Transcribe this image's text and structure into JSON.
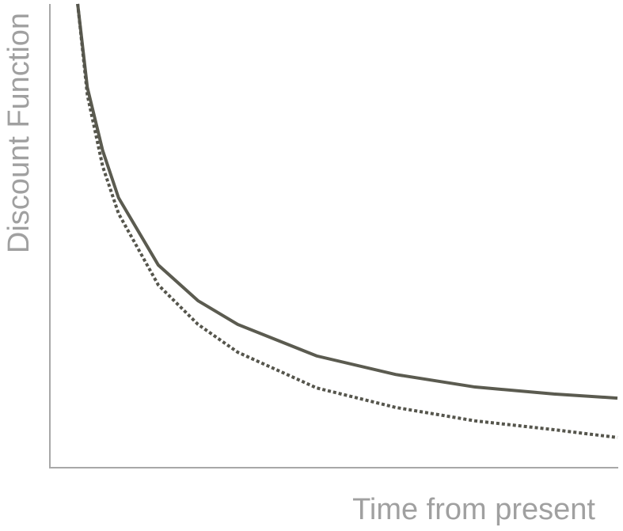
{
  "chart_data": {
    "type": "line",
    "x_label": "Time from present",
    "y_label": "Discount Function",
    "xlim": [
      0,
      100
    ],
    "ylim": [
      0,
      100
    ],
    "grid": false,
    "series": [
      {
        "color": "#5b5b50",
        "style": "solid",
        "x": [
          4.9,
          6.6,
          9.3,
          12.1,
          19.1,
          26.1,
          33.1,
          47.0,
          60.9,
          74.9,
          88.8,
          100
        ],
        "values": [
          100,
          82.0,
          68.4,
          58.2,
          43.7,
          36.0,
          30.9,
          24.1,
          20.1,
          17.4,
          15.9,
          15.0
        ]
      },
      {
        "color": "#55554c",
        "style": "dotted",
        "x": [
          4.9,
          6.6,
          9.3,
          12.1,
          19.1,
          26.1,
          33.1,
          47.0,
          60.9,
          74.9,
          88.8,
          100
        ],
        "values": [
          100,
          80.4,
          65.0,
          54.8,
          39.4,
          30.9,
          24.9,
          17.2,
          13.0,
          10.1,
          8.2,
          6.5
        ]
      }
    ]
  }
}
